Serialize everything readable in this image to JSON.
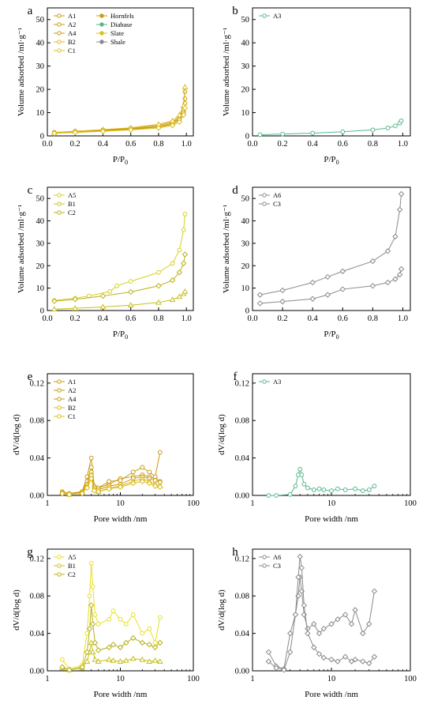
{
  "figure": {
    "panels": [
      {
        "key": "a",
        "label": "a",
        "type": "isotherm",
        "ylabel": "Volume adsorbed /ml·g⁻¹",
        "xlabel_main": "P/P",
        "xlabel_sub": "0",
        "xticks": [
          "0.0",
          "0.2",
          "0.4",
          "0.6",
          "0.8",
          "1.0"
        ],
        "yticks": [
          "0",
          "10",
          "20",
          "30",
          "40",
          "50"
        ],
        "legend_col1": [
          "A1",
          "A2",
          "A4",
          "B2",
          "C1"
        ],
        "legend_col2": [
          "Hornfels",
          "Diabase",
          "Slate",
          "Shale"
        ]
      },
      {
        "key": "b",
        "label": "b",
        "type": "isotherm",
        "ylabel": "Volume adsorbed /ml·g⁻¹",
        "xlabel_main": "P/P",
        "xlabel_sub": "0",
        "xticks": [
          "0.0",
          "0.2",
          "0.4",
          "0.6",
          "0.8",
          "1.0"
        ],
        "yticks": [
          "0",
          "10",
          "20",
          "30",
          "40",
          "50"
        ],
        "legend_col1": [
          "A3"
        ],
        "legend_col2": []
      },
      {
        "key": "c",
        "label": "c",
        "type": "isotherm",
        "ylabel": "Volume adsorbed /ml·g⁻¹",
        "xlabel_main": "P/P",
        "xlabel_sub": "0",
        "xticks": [
          "0.0",
          "0.2",
          "0.4",
          "0.6",
          "0.8",
          "1.0"
        ],
        "yticks": [
          "0",
          "10",
          "20",
          "30",
          "40",
          "50"
        ],
        "legend_col1": [
          "A5",
          "B1",
          "C2"
        ],
        "legend_col2": []
      },
      {
        "key": "d",
        "label": "d",
        "type": "isotherm",
        "ylabel": "Volume adsorbed /ml·g⁻¹",
        "xlabel_main": "P/P",
        "xlabel_sub": "0",
        "xticks": [
          "0.0",
          "0.2",
          "0.4",
          "0.6",
          "0.8",
          "1.0"
        ],
        "yticks": [
          "0",
          "10",
          "20",
          "30",
          "40",
          "50"
        ],
        "legend_col1": [
          "A6",
          "C3"
        ],
        "legend_col2": []
      },
      {
        "key": "e",
        "label": "e",
        "type": "psd",
        "ylabel": "dV/d(log d)",
        "xlabel_main": "Pore width /nm",
        "xlabel_sub": "",
        "xticks": [
          "1",
          "10",
          "100"
        ],
        "yticks": [
          "0.00",
          "0.04",
          "0.08",
          "0.12"
        ],
        "legend_col1": [
          "A1",
          "A2",
          "A4",
          "B2",
          "C1"
        ],
        "legend_col2": []
      },
      {
        "key": "f",
        "label": "f",
        "type": "psd",
        "ylabel": "dV/d(log d)",
        "xlabel_main": "Pore width /nm",
        "xlabel_sub": "",
        "xticks": [
          "1",
          "10",
          "100"
        ],
        "yticks": [
          "0.00",
          "0.04",
          "0.08",
          "0.12"
        ],
        "legend_col1": [
          "A3"
        ],
        "legend_col2": []
      },
      {
        "key": "g",
        "label": "g",
        "type": "psd",
        "ylabel": "dV/d(log d)",
        "xlabel_main": "Pore width /nm",
        "xlabel_sub": "",
        "xticks": [
          "1",
          "10",
          "100"
        ],
        "yticks": [
          "0.00",
          "0.04",
          "0.08",
          "0.12"
        ],
        "legend_col1": [
          "A5",
          "B1",
          "C2"
        ],
        "legend_col2": []
      },
      {
        "key": "h",
        "label": "h",
        "type": "psd",
        "ylabel": "dV/d(log d)",
        "xlabel_main": "Pore width /nm",
        "xlabel_sub": "",
        "xticks": [
          "1",
          "10",
          "100"
        ],
        "yticks": [
          "0.00",
          "0.04",
          "0.08",
          "0.12"
        ],
        "legend_col1": [
          "A6",
          "C3"
        ],
        "legend_col2": []
      }
    ]
  },
  "chart_data": [
    {
      "panel": "a",
      "type": "line",
      "xlim": [
        0,
        1.05
      ],
      "ylim": [
        0,
        55
      ],
      "grid": false,
      "legend": "top-left",
      "series": [
        {
          "name": "A1",
          "color": "#c89a10",
          "marker": "circle",
          "x": [
            0.05,
            0.2,
            0.4,
            0.6,
            0.8,
            0.9,
            0.95,
            0.98,
            0.99
          ],
          "y": [
            1.5,
            2,
            2.6,
            3.3,
            4.5,
            6,
            8,
            12,
            19
          ]
        },
        {
          "name": "A2",
          "color": "#c89a10",
          "marker": "circle",
          "x": [
            0.05,
            0.2,
            0.4,
            0.6,
            0.8,
            0.9,
            0.95,
            0.98,
            0.99
          ],
          "y": [
            1.3,
            1.8,
            2.4,
            3,
            4,
            5.5,
            7.5,
            11,
            16
          ]
        },
        {
          "name": "A4",
          "color": "#c89a10",
          "marker": "circle",
          "x": [
            0.05,
            0.2,
            0.4,
            0.6,
            0.8,
            0.9,
            0.95,
            0.98,
            0.99
          ],
          "y": [
            1.2,
            1.7,
            2.2,
            2.8,
            3.8,
            5,
            7,
            10,
            14
          ]
        },
        {
          "name": "B2",
          "color": "#e0b820",
          "marker": "triangle",
          "x": [
            0.05,
            0.2,
            0.4,
            0.6,
            0.8,
            0.9,
            0.95,
            0.98,
            0.99
          ],
          "y": [
            1.4,
            2,
            2.7,
            3.5,
            5,
            6.5,
            9,
            13,
            21
          ]
        },
        {
          "name": "C1",
          "color": "#d8c020",
          "marker": "diamond",
          "x": [
            0.05,
            0.2,
            0.4,
            0.6,
            0.8,
            0.9,
            0.95,
            0.98,
            0.99
          ],
          "y": [
            1.1,
            1.5,
            2,
            2.6,
            3.4,
            4.5,
            6,
            9,
            12
          ]
        }
      ]
    },
    {
      "panel": "b",
      "type": "line",
      "xlim": [
        0,
        1.05
      ],
      "ylim": [
        0,
        55
      ],
      "grid": false,
      "legend": "top-left",
      "series": [
        {
          "name": "A3",
          "color": "#55b98a",
          "marker": "circle",
          "x": [
            0.05,
            0.2,
            0.4,
            0.6,
            0.8,
            0.9,
            0.95,
            0.98,
            0.99
          ],
          "y": [
            0.5,
            0.8,
            1.2,
            1.8,
            2.6,
            3.4,
            4.3,
            5.5,
            6.5
          ]
        }
      ]
    },
    {
      "panel": "c",
      "type": "line",
      "xlim": [
        0,
        1.05
      ],
      "ylim": [
        0,
        55
      ],
      "grid": false,
      "legend": "top-left",
      "series": [
        {
          "name": "A5",
          "color": "#d8d020",
          "marker": "circle",
          "x": [
            0.05,
            0.2,
            0.3,
            0.45,
            0.5,
            0.6,
            0.8,
            0.9,
            0.95,
            0.98,
            0.99
          ],
          "y": [
            4.5,
            5.5,
            6.5,
            8.5,
            11,
            13,
            17,
            21,
            27,
            36,
            43
          ]
        },
        {
          "name": "B1",
          "color": "#c8c018",
          "marker": "triangle",
          "x": [
            0.05,
            0.2,
            0.4,
            0.6,
            0.8,
            0.9,
            0.95,
            0.98,
            0.99
          ],
          "y": [
            0.6,
            1,
            1.6,
            2.4,
            3.6,
            4.8,
            6.2,
            7.5,
            8.5
          ]
        },
        {
          "name": "C2",
          "color": "#b8b018",
          "marker": "diamond",
          "x": [
            0.05,
            0.2,
            0.4,
            0.6,
            0.8,
            0.9,
            0.95,
            0.98,
            0.99
          ],
          "y": [
            4.2,
            5,
            6.5,
            8.3,
            11,
            13.5,
            17,
            21,
            25
          ]
        }
      ]
    },
    {
      "panel": "d",
      "type": "line",
      "xlim": [
        0,
        1.05
      ],
      "ylim": [
        0,
        55
      ],
      "grid": false,
      "legend": "top-left",
      "series": [
        {
          "name": "A6",
          "color": "#8a8a8a",
          "marker": "diamond",
          "x": [
            0.05,
            0.2,
            0.4,
            0.5,
            0.6,
            0.8,
            0.9,
            0.95,
            0.98,
            0.99
          ],
          "y": [
            7,
            9,
            12.5,
            15,
            17.5,
            22,
            26.5,
            33,
            45,
            52
          ]
        },
        {
          "name": "C3",
          "color": "#8a8a8a",
          "marker": "diamond",
          "x": [
            0.05,
            0.2,
            0.4,
            0.5,
            0.6,
            0.8,
            0.9,
            0.95,
            0.98,
            0.99
          ],
          "y": [
            3.2,
            4,
            5.2,
            7,
            9.5,
            11,
            12.5,
            14,
            16,
            18.5
          ]
        }
      ]
    },
    {
      "panel": "e",
      "type": "line",
      "xscale": "log",
      "xlim": [
        1,
        100
      ],
      "ylim": [
        0,
        0.13
      ],
      "grid": false,
      "legend": "top-left",
      "series": [
        {
          "name": "A1",
          "color": "#c89a10",
          "marker": "circle",
          "x": [
            1.6,
            2,
            3,
            3.5,
            4,
            4.4,
            5,
            7,
            10,
            15,
            20,
            25,
            30,
            35
          ],
          "y": [
            0.004,
            0.002,
            0.004,
            0.02,
            0.04,
            0.01,
            0.008,
            0.012,
            0.018,
            0.02,
            0.022,
            0.02,
            0.018,
            0.015
          ]
        },
        {
          "name": "A2",
          "color": "#c89a10",
          "marker": "circle",
          "x": [
            1.6,
            2,
            3,
            3.5,
            4,
            4.4,
            5,
            7,
            10,
            15,
            20,
            25,
            30,
            35
          ],
          "y": [
            0.003,
            0.002,
            0.004,
            0.015,
            0.03,
            0.01,
            0.008,
            0.015,
            0.016,
            0.025,
            0.03,
            0.025,
            0.02,
            0.046
          ]
        },
        {
          "name": "A4",
          "color": "#c89a10",
          "marker": "circle",
          "x": [
            1.6,
            2,
            3,
            3.5,
            4,
            4.4,
            5,
            7,
            10,
            15,
            20,
            25,
            30,
            35
          ],
          "y": [
            0.002,
            0.002,
            0.003,
            0.012,
            0.025,
            0.008,
            0.006,
            0.01,
            0.012,
            0.018,
            0.02,
            0.018,
            0.016,
            0.014
          ]
        },
        {
          "name": "B2",
          "color": "#e0b820",
          "marker": "triangle",
          "x": [
            1.6,
            2,
            3,
            3.5,
            4,
            4.4,
            5,
            7,
            10,
            15,
            20,
            25,
            30,
            35
          ],
          "y": [
            0.003,
            0.001,
            0.003,
            0.01,
            0.022,
            0.006,
            0.004,
            0.008,
            0.01,
            0.015,
            0.018,
            0.015,
            0.012,
            0.01
          ]
        },
        {
          "name": "C1",
          "color": "#d8c020",
          "marker": "diamond",
          "x": [
            1.6,
            2,
            3,
            3.5,
            4,
            4.4,
            5,
            7,
            10,
            15,
            20,
            25,
            30,
            35
          ],
          "y": [
            0.002,
            0.001,
            0.002,
            0.008,
            0.018,
            0.005,
            0.004,
            0.007,
            0.009,
            0.013,
            0.015,
            0.013,
            0.01,
            0.009
          ]
        }
      ]
    },
    {
      "panel": "f",
      "type": "line",
      "xscale": "log",
      "xlim": [
        1,
        100
      ],
      "ylim": [
        0,
        0.13
      ],
      "grid": false,
      "legend": "top-left",
      "series": [
        {
          "name": "A3",
          "color": "#55b98a",
          "marker": "circle",
          "x": [
            1.6,
            2,
            3,
            3.5,
            3.8,
            4,
            4.2,
            4.5,
            5,
            6,
            7,
            8,
            10,
            12,
            15,
            20,
            25,
            30,
            35
          ],
          "y": [
            0,
            0,
            0.001,
            0.01,
            0.022,
            0.028,
            0.022,
            0.012,
            0.008,
            0.006,
            0.007,
            0.006,
            0.005,
            0.007,
            0.006,
            0.007,
            0.005,
            0.006,
            0.01
          ]
        }
      ]
    },
    {
      "panel": "g",
      "type": "line",
      "xscale": "log",
      "xlim": [
        1,
        100
      ],
      "ylim": [
        0,
        0.13
      ],
      "grid": false,
      "legend": "top-left",
      "series": [
        {
          "name": "A5",
          "color": "#e8e020",
          "marker": "circle",
          "x": [
            1.6,
            2,
            3,
            3.5,
            3.8,
            4,
            4.2,
            4.5,
            5,
            7,
            8,
            10,
            12,
            15,
            20,
            25,
            30,
            35
          ],
          "y": [
            0.012,
            0.002,
            0.006,
            0.04,
            0.08,
            0.115,
            0.09,
            0.06,
            0.05,
            0.055,
            0.064,
            0.055,
            0.05,
            0.06,
            0.04,
            0.045,
            0.03,
            0.057
          ]
        },
        {
          "name": "B1",
          "color": "#c8c018",
          "marker": "triangle",
          "x": [
            1.6,
            2,
            3,
            3.5,
            3.8,
            4,
            4.2,
            4.5,
            5,
            7,
            8,
            10,
            12,
            15,
            20,
            25,
            30,
            35
          ],
          "y": [
            0.003,
            0.001,
            0.003,
            0.01,
            0.02,
            0.03,
            0.02,
            0.012,
            0.01,
            0.012,
            0.011,
            0.01,
            0.011,
            0.013,
            0.012,
            0.01,
            0.011,
            0.01
          ]
        },
        {
          "name": "C2",
          "color": "#b8b018",
          "marker": "diamond",
          "x": [
            1.6,
            2,
            3,
            3.5,
            3.8,
            4,
            4.2,
            4.5,
            5,
            7,
            8,
            10,
            12,
            15,
            20,
            25,
            30,
            35
          ],
          "y": [
            0.004,
            0.001,
            0.004,
            0.02,
            0.045,
            0.07,
            0.05,
            0.03,
            0.022,
            0.025,
            0.028,
            0.025,
            0.03,
            0.035,
            0.03,
            0.028,
            0.025,
            0.03
          ]
        }
      ]
    },
    {
      "panel": "h",
      "type": "line",
      "xscale": "log",
      "xlim": [
        1,
        100
      ],
      "ylim": [
        0,
        0.13
      ],
      "grid": false,
      "legend": "top-left",
      "series": [
        {
          "name": "A6",
          "color": "#8a8a8a",
          "marker": "diamond",
          "x": [
            1.6,
            2,
            2.5,
            3,
            3.5,
            3.8,
            4,
            4.2,
            4.5,
            5,
            6,
            7,
            8,
            10,
            12,
            15,
            18,
            20,
            25,
            30,
            35
          ],
          "y": [
            0.02,
            0.005,
            0.002,
            0.04,
            0.06,
            0.08,
            0.1,
            0.085,
            0.06,
            0.045,
            0.05,
            0.04,
            0.045,
            0.05,
            0.055,
            0.06,
            0.05,
            0.065,
            0.04,
            0.05,
            0.085
          ]
        },
        {
          "name": "C3",
          "color": "#8a8a8a",
          "marker": "diamond",
          "x": [
            1.6,
            2,
            2.5,
            3,
            3.5,
            3.8,
            4,
            4.2,
            4.5,
            5,
            6,
            7,
            8,
            10,
            12,
            15,
            18,
            20,
            25,
            30,
            35
          ],
          "y": [
            0.01,
            0.003,
            0.001,
            0.02,
            0.06,
            0.1,
            0.122,
            0.11,
            0.07,
            0.04,
            0.025,
            0.018,
            0.014,
            0.012,
            0.01,
            0.015,
            0.01,
            0.012,
            0.01,
            0.008,
            0.015
          ]
        }
      ]
    }
  ]
}
